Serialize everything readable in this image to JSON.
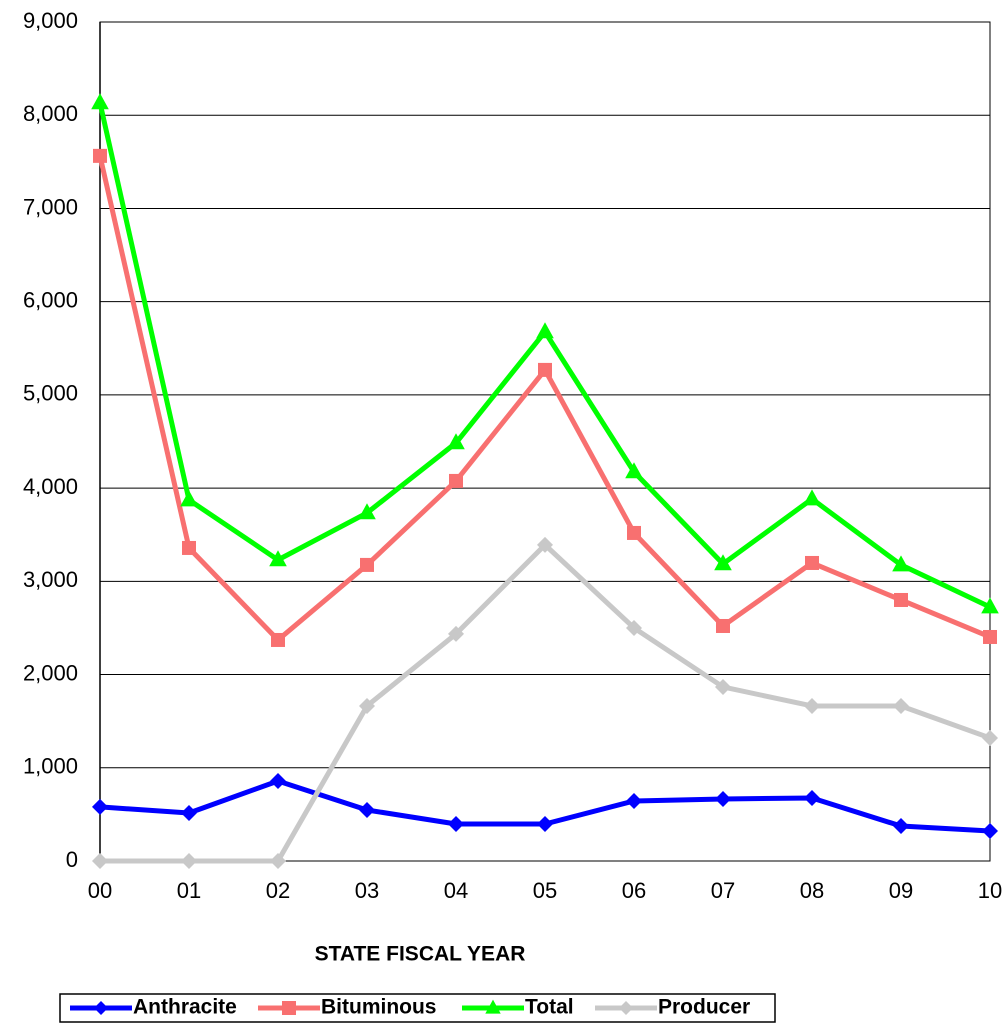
{
  "chart_data": {
    "type": "line",
    "x_label": "STATE FISCAL YEAR",
    "categories": [
      "00",
      "01",
      "02",
      "03",
      "04",
      "05",
      "06",
      "07",
      "08",
      "09",
      "10"
    ],
    "series": [
      {
        "name": "Anthracite",
        "color": "#0000ff",
        "marker": "diamond",
        "values": [
          580,
          515,
          858,
          547,
          397,
          397,
          644,
          665,
          676,
          375,
          322
        ]
      },
      {
        "name": "Bituminous",
        "color": "#f87070",
        "marker": "square",
        "values": [
          7564,
          3358,
          2371,
          3176,
          4077,
          5268,
          3519,
          2521,
          3197,
          2800,
          2403
        ]
      },
      {
        "name": "Total",
        "color": "#00ff00",
        "marker": "triangle",
        "values": [
          8133,
          3873,
          3230,
          3734,
          4485,
          5676,
          4174,
          3187,
          3884,
          3176,
          2725
        ]
      },
      {
        "name": "Producer",
        "color": "#c8c8c8",
        "marker": "diamond",
        "values": [
          0,
          0,
          0,
          1663,
          2436,
          3391,
          2500,
          1867,
          1663,
          1663,
          1320
        ]
      }
    ],
    "ylim": [
      0,
      9000
    ],
    "yticks": [
      0,
      {
        "value": 1000,
        "label": "1,000"
      },
      {
        "value": 2000,
        "label": "2,000"
      },
      {
        "value": 3000,
        "label": "3,000"
      },
      {
        "value": 4000,
        "label": "4,000"
      },
      {
        "value": 5000,
        "label": "5,000"
      },
      {
        "value": 6000,
        "label": "6,000"
      },
      {
        "value": 7000,
        "label": "7,000"
      },
      {
        "value": 8000,
        "label": "8,000"
      },
      {
        "value": 9000,
        "label": "9,000"
      }
    ],
    "grid": true
  }
}
